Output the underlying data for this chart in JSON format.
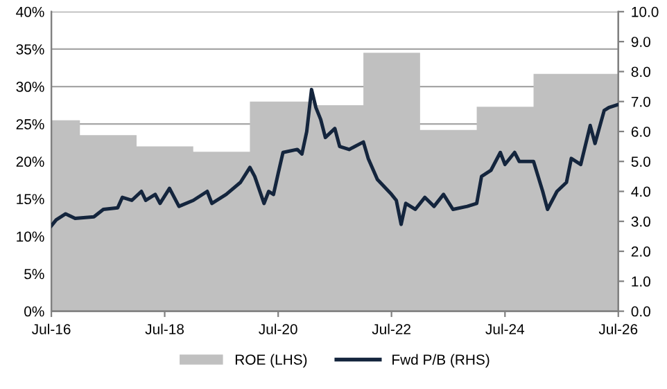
{
  "chart_data": {
    "type": "line",
    "series": [
      {
        "name": "ROE (LHS)",
        "type": "area",
        "color": "#c0c0c0",
        "axis": "y",
        "x": [
          "2016-07",
          "2017-01",
          "2017-01",
          "2018-01",
          "2018-01",
          "2019-01",
          "2019-01",
          "2020-01",
          "2020-01",
          "2021-03",
          "2021-03",
          "2022-01",
          "2022-01",
          "2023-01",
          "2023-01",
          "2024-01",
          "2024-01",
          "2025-01",
          "2025-01",
          "2026-07"
        ],
        "values": [
          25.5,
          25.5,
          23.5,
          23.5,
          22,
          22,
          21.3,
          21.3,
          28,
          28,
          27.5,
          27.5,
          34.5,
          34.5,
          24.2,
          24.2,
          27.3,
          27.3,
          31.7,
          31.7
        ]
      },
      {
        "name": "Fwd P/B (RHS)",
        "color": "#14253d",
        "axis": "y2",
        "x": [
          "2016-07",
          "2016-08",
          "2016-10",
          "2016-12",
          "2017-04",
          "2017-06",
          "2017-09",
          "2017-10",
          "2017-12",
          "2018-02",
          "2018-03",
          "2018-05",
          "2018-06",
          "2018-08",
          "2018-10",
          "2019-01",
          "2019-04",
          "2019-05",
          "2019-08",
          "2019-11",
          "2020-01",
          "2020-02",
          "2020-04",
          "2020-05",
          "2020-06",
          "2020-07",
          "2020-08",
          "2020-11",
          "2020-12",
          "2021-01",
          "2021-02",
          "2021-03",
          "2021-04",
          "2021-05",
          "2021-07",
          "2021-08",
          "2021-10",
          "2022-01",
          "2022-02",
          "2022-04",
          "2022-07",
          "2022-08",
          "2022-09",
          "2022-10",
          "2022-12",
          "2023-02",
          "2023-04",
          "2023-06",
          "2023-08",
          "2023-11",
          "2024-01",
          "2024-02",
          "2024-04",
          "2024-06",
          "2024-07",
          "2024-09",
          "2024-10",
          "2025-01",
          "2025-03",
          "2025-04",
          "2025-06",
          "2025-08",
          "2025-09",
          "2025-11",
          "2026-01",
          "2026-02",
          "2026-04",
          "2026-05",
          "2026-07"
        ],
        "values": [
          2.85,
          3.05,
          3.25,
          3.1,
          3.15,
          3.4,
          3.45,
          3.8,
          3.7,
          4.0,
          3.7,
          3.9,
          3.6,
          4.1,
          3.5,
          3.7,
          4.0,
          3.6,
          3.9,
          4.3,
          4.8,
          4.5,
          3.6,
          4.0,
          3.9,
          4.6,
          5.3,
          5.4,
          5.25,
          6.0,
          7.4,
          6.8,
          6.4,
          5.8,
          6.1,
          5.5,
          5.4,
          5.65,
          5.1,
          4.4,
          3.9,
          3.7,
          2.9,
          3.6,
          3.4,
          3.8,
          3.5,
          3.9,
          3.4,
          3.5,
          3.6,
          4.5,
          4.7,
          5.3,
          4.9,
          5.3,
          5.0,
          5.0,
          4.0,
          3.4,
          4.0,
          4.3,
          5.1,
          4.9,
          6.2,
          5.6,
          6.7,
          6.8,
          6.9
        ]
      }
    ],
    "xlim": [
      "2016-07",
      "2026-07"
    ],
    "xticks": [
      {
        "value": "2016-07",
        "label": "Jul-16"
      },
      {
        "value": "2018-07",
        "label": "Jul-18"
      },
      {
        "value": "2020-07",
        "label": "Jul-20"
      },
      {
        "value": "2022-07",
        "label": "Jul-22"
      },
      {
        "value": "2024-07",
        "label": "Jul-24"
      },
      {
        "value": "2026-07",
        "label": "Jul-26"
      }
    ],
    "ylim": [
      0,
      40
    ],
    "yticks": [
      {
        "value": 0,
        "label": "0%"
      },
      {
        "value": 5,
        "label": "5%"
      },
      {
        "value": 10,
        "label": "10%"
      },
      {
        "value": 15,
        "label": "15%"
      },
      {
        "value": 20,
        "label": "20%"
      },
      {
        "value": 25,
        "label": "25%"
      },
      {
        "value": 30,
        "label": "30%"
      },
      {
        "value": 35,
        "label": "35%"
      },
      {
        "value": 40,
        "label": "40%"
      }
    ],
    "y2lim": [
      0,
      10
    ],
    "y2ticks": [
      {
        "value": 0,
        "label": "0.0"
      },
      {
        "value": 1,
        "label": "1.0"
      },
      {
        "value": 2,
        "label": "2.0"
      },
      {
        "value": 3,
        "label": "3.0"
      },
      {
        "value": 4,
        "label": "4.0"
      },
      {
        "value": 5,
        "label": "5.0"
      },
      {
        "value": 6,
        "label": "6.0"
      },
      {
        "value": 7,
        "label": "7.0"
      },
      {
        "value": 8,
        "label": "8.0"
      },
      {
        "value": 9,
        "label": "9.0"
      },
      {
        "value": 10,
        "label": "10.0"
      }
    ],
    "grid": "y",
    "legend": "bottom"
  }
}
